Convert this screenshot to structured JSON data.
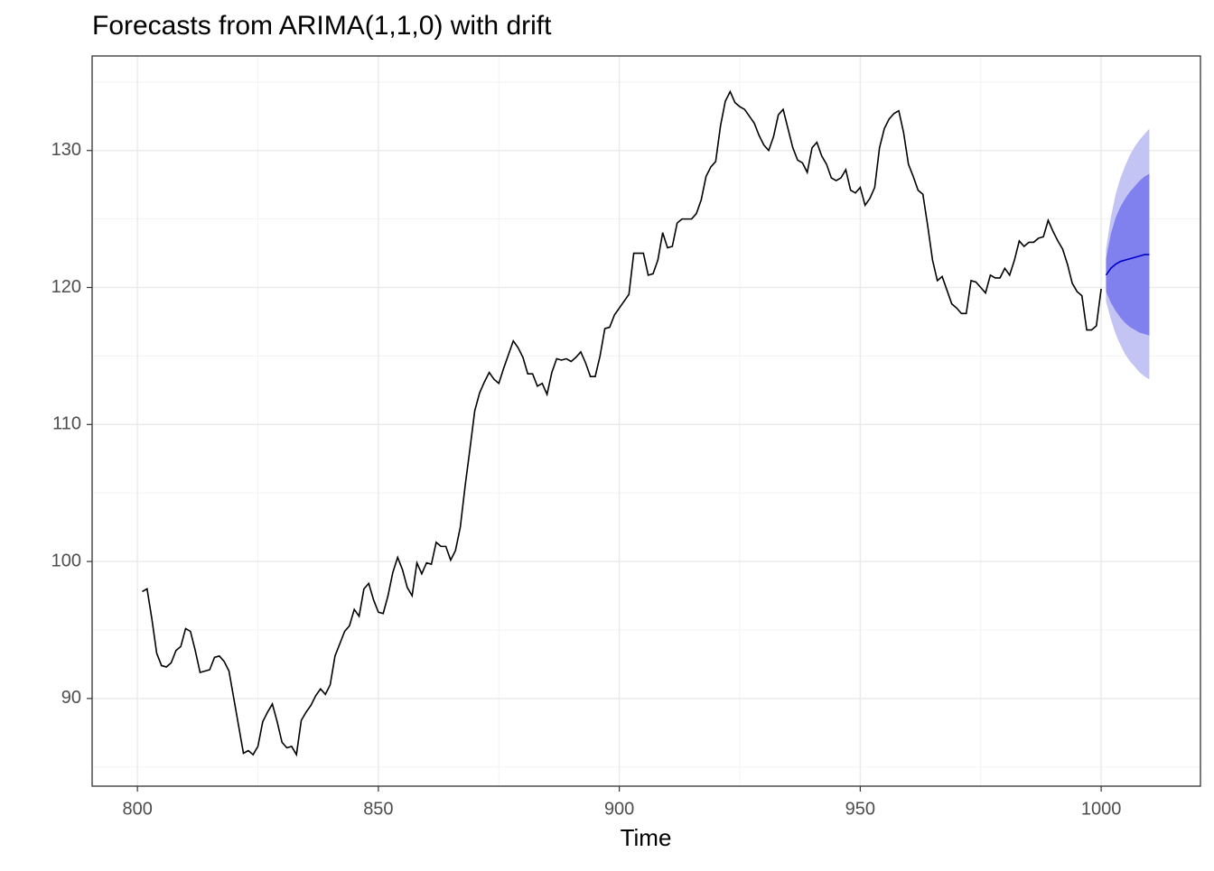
{
  "chart_data": {
    "type": "line",
    "title": "Forecasts from ARIMA(1,1,0) with drift",
    "xlabel": "Time",
    "xlim": [
      790.6,
      1020.6
    ],
    "ylim": [
      83.6,
      136.9
    ],
    "xticks": [
      800,
      850,
      900,
      950,
      1000
    ],
    "yticks": [
      90,
      100,
      110,
      120,
      130
    ],
    "x_minor_ticks": [
      825,
      875,
      925,
      975
    ],
    "y_minor_ticks": [
      85,
      95,
      105,
      115,
      125,
      135
    ],
    "grid": true,
    "x": [
      801,
      802,
      803,
      804,
      805,
      806,
      807,
      808,
      809,
      810,
      811,
      812,
      813,
      814,
      815,
      816,
      817,
      818,
      819,
      820,
      821,
      822,
      823,
      824,
      825,
      826,
      827,
      828,
      829,
      830,
      831,
      832,
      833,
      834,
      835,
      836,
      837,
      838,
      839,
      840,
      841,
      842,
      843,
      844,
      845,
      846,
      847,
      848,
      849,
      850,
      851,
      852,
      853,
      854,
      855,
      856,
      857,
      858,
      859,
      860,
      861,
      862,
      863,
      864,
      865,
      866,
      867,
      868,
      869,
      870,
      871,
      872,
      873,
      874,
      875,
      876,
      877,
      878,
      879,
      880,
      881,
      882,
      883,
      884,
      885,
      886,
      887,
      888,
      889,
      890,
      891,
      892,
      893,
      894,
      895,
      896,
      897,
      898,
      899,
      900,
      901,
      902,
      903,
      904,
      905,
      906,
      907,
      908,
      909,
      910,
      911,
      912,
      913,
      914,
      915,
      916,
      917,
      918,
      919,
      920,
      921,
      922,
      923,
      924,
      925,
      926,
      927,
      928,
      929,
      930,
      931,
      932,
      933,
      934,
      935,
      936,
      937,
      938,
      939,
      940,
      941,
      942,
      943,
      944,
      945,
      946,
      947,
      948,
      949,
      950,
      951,
      952,
      953,
      954,
      955,
      956,
      957,
      958,
      959,
      960,
      961,
      962,
      963,
      964,
      965,
      966,
      967,
      968,
      969,
      970,
      971,
      972,
      973,
      974,
      975,
      976,
      977,
      978,
      979,
      980,
      981,
      982,
      983,
      984,
      985,
      986,
      987,
      988,
      989,
      990,
      991,
      992,
      993,
      994,
      995,
      996,
      997,
      998,
      999,
      1000
    ],
    "series": [
      {
        "color": "#000000",
        "values": [
          97.8,
          98.0,
          95.8,
          93.3,
          92.4,
          92.3,
          92.6,
          93.5,
          93.8,
          95.1,
          94.9,
          93.5,
          91.9,
          92.0,
          92.1,
          93.0,
          93.1,
          92.7,
          92.0,
          90.0,
          88.0,
          86.0,
          86.2,
          85.9,
          86.5,
          88.3,
          89.0,
          89.6,
          88.3,
          86.8,
          86.4,
          86.5,
          85.9,
          88.4,
          89.0,
          89.5,
          90.2,
          90.7,
          90.3,
          91.0,
          93.1,
          94.0,
          94.9,
          95.3,
          96.5,
          96.0,
          98.0,
          98.4,
          97.2,
          96.3,
          96.2,
          97.5,
          99.2,
          100.3,
          99.4,
          98.1,
          97.5,
          99.9,
          99.1,
          99.9,
          99.8,
          101.4,
          101.1,
          101.1,
          100.1,
          100.8,
          102.5,
          105.5,
          108.2,
          111.0,
          112.3,
          113.1,
          113.8,
          113.3,
          113.0,
          114.1,
          115.1,
          116.1,
          115.6,
          114.9,
          113.7,
          113.7,
          112.8,
          113.0,
          112.2,
          113.8,
          114.8,
          114.7,
          114.8,
          114.6,
          114.9,
          115.3,
          114.5,
          113.5,
          113.5,
          115.0,
          117.0,
          117.1,
          118.0,
          118.5,
          119.0,
          119.5,
          122.5,
          122.5,
          122.5,
          120.9,
          121.0,
          122.0,
          124.0,
          122.9,
          123.0,
          124.7,
          125.0,
          125.0,
          125.0,
          125.4,
          126.4,
          128.1,
          128.8,
          129.2,
          131.8,
          133.6,
          134.3,
          133.5,
          133.2,
          133.0,
          132.5,
          132.0,
          131.1,
          130.4,
          130.0,
          131.0,
          132.6,
          133.0,
          131.6,
          130.2,
          129.3,
          129.1,
          128.4,
          130.2,
          130.6,
          129.6,
          129.0,
          128.0,
          127.8,
          128.0,
          128.6,
          127.1,
          126.9,
          127.3,
          126.0,
          126.5,
          127.3,
          130.2,
          131.6,
          132.3,
          132.7,
          132.9,
          131.3,
          129.0,
          128.1,
          127.1,
          126.8,
          124.5,
          122.0,
          120.5,
          120.8,
          119.8,
          118.8,
          118.5,
          118.1,
          118.1,
          120.5,
          120.4,
          120.0,
          119.6,
          120.9,
          120.7,
          120.7,
          121.4,
          120.9,
          122.0,
          123.4,
          123.0,
          123.3,
          123.3,
          123.6,
          123.7,
          124.9,
          124.1,
          123.4,
          122.8,
          121.7,
          120.3,
          119.7,
          119.4,
          116.9,
          116.9,
          117.2,
          119.9
        ]
      }
    ],
    "forecast": {
      "x": [
        1001,
        1002,
        1003,
        1004,
        1005,
        1006,
        1007,
        1008,
        1009,
        1010
      ],
      "mean": [
        120.9,
        121.4,
        121.7,
        121.9,
        122.0,
        122.1,
        122.2,
        122.3,
        122.4,
        122.4
      ],
      "lo80": [
        119.7,
        118.9,
        118.3,
        117.8,
        117.4,
        117.1,
        116.9,
        116.7,
        116.6,
        116.5
      ],
      "hi80": [
        122.1,
        123.9,
        125.1,
        125.9,
        126.5,
        127.0,
        127.4,
        127.8,
        128.1,
        128.3
      ],
      "lo95": [
        119.0,
        117.7,
        116.6,
        115.8,
        115.1,
        114.6,
        114.2,
        113.8,
        113.5,
        113.3
      ],
      "hi95": [
        122.8,
        125.1,
        126.8,
        128.0,
        128.9,
        129.7,
        130.3,
        130.8,
        131.2,
        131.6
      ],
      "mean_color": "#0000cc",
      "band80_color": "#8080ee",
      "band95_color": "#c4c4f4"
    }
  }
}
